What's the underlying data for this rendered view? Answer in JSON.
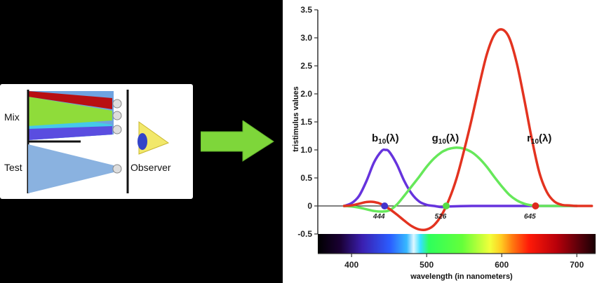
{
  "diagram": {
    "mix_label": "Mix",
    "test_label": "Test",
    "observer_label": "Observer"
  },
  "colors": {
    "red": "#e33320",
    "green": "#66e85a",
    "blue": "#6633dd",
    "arrow": "#7ed63a"
  },
  "chart_data": {
    "type": "line",
    "title": "",
    "xlabel": "wavelength (in nanometers)",
    "ylabel": "tristimulus values",
    "xlim": [
      355,
      725
    ],
    "ylim": [
      -0.5,
      3.5
    ],
    "x_ticks": [
      400,
      500,
      600,
      700
    ],
    "y_ticks": [
      -0.5,
      0,
      0.5,
      1.0,
      1.5,
      2.0,
      2.5,
      3.0,
      3.5
    ],
    "y_tick_labels": [
      "-0.5",
      "0",
      "0.5",
      "1.0",
      "1.5",
      "2.0",
      "2.5",
      "3.0",
      "3.5"
    ],
    "series": [
      {
        "name": "b",
        "name_sub": "10",
        "name_suffix": "(λ)",
        "color": "#6633dd",
        "x": [
          390,
          400,
          410,
          420,
          430,
          440,
          445,
          450,
          460,
          470,
          480,
          490,
          500,
          510,
          520,
          530,
          560,
          600,
          650,
          700
        ],
        "y": [
          0,
          0.05,
          0.18,
          0.45,
          0.78,
          0.98,
          1.0,
          0.97,
          0.75,
          0.45,
          0.22,
          0.08,
          0.02,
          0,
          -0.02,
          -0.01,
          0,
          0,
          0,
          0
        ]
      },
      {
        "name": "g",
        "name_sub": "10",
        "name_suffix": "(λ)",
        "color": "#66e85a",
        "x": [
          390,
          400,
          410,
          420,
          430,
          440,
          450,
          460,
          470,
          480,
          490,
          500,
          510,
          520,
          526,
          530,
          540,
          550,
          560,
          570,
          580,
          590,
          600,
          610,
          620,
          630,
          640,
          645,
          660,
          700
        ],
        "y": [
          0,
          -0.01,
          -0.03,
          -0.06,
          -0.09,
          -0.1,
          -0.08,
          0.02,
          0.18,
          0.35,
          0.52,
          0.7,
          0.85,
          0.96,
          1.0,
          1.02,
          1.04,
          1.02,
          0.96,
          0.85,
          0.7,
          0.52,
          0.35,
          0.2,
          0.1,
          0.04,
          0.01,
          0,
          0,
          0
        ]
      },
      {
        "name": "r",
        "name_sub": "10",
        "name_suffix": "(λ)",
        "color": "#e33320",
        "x": [
          390,
          400,
          410,
          420,
          430,
          440,
          450,
          460,
          470,
          480,
          490,
          500,
          510,
          520,
          530,
          540,
          550,
          560,
          570,
          580,
          590,
          600,
          610,
          620,
          630,
          640,
          650,
          660,
          670,
          680,
          690,
          700,
          720
        ],
        "y": [
          0,
          0.01,
          0.04,
          0.07,
          0.07,
          0.03,
          -0.05,
          -0.15,
          -0.26,
          -0.36,
          -0.42,
          -0.42,
          -0.34,
          -0.16,
          0.12,
          0.5,
          1.0,
          1.55,
          2.15,
          2.7,
          3.05,
          3.15,
          3.0,
          2.55,
          1.9,
          1.2,
          0.6,
          0.25,
          0.08,
          0.02,
          0.01,
          0,
          0
        ]
      }
    ],
    "annotations": [
      {
        "x": 444,
        "label": "444",
        "color": "#4433cc"
      },
      {
        "x": 526,
        "label": "526",
        "color": "#55dd44"
      },
      {
        "x": 645,
        "label": "645",
        "color": "#dd2a1e"
      }
    ],
    "label_positions": [
      {
        "x": 445,
        "y": 1.15
      },
      {
        "x": 525,
        "y": 1.15
      },
      {
        "x": 650,
        "y": 1.15
      }
    ],
    "legend": "none",
    "grid": false
  }
}
